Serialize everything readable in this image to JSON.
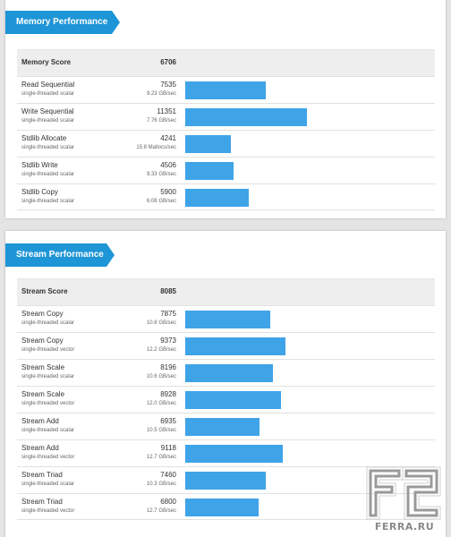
{
  "chart_data": [
    {
      "type": "bar",
      "title": "Memory Performance",
      "header": {
        "label": "Memory Score",
        "value": 6706
      },
      "bar_max": 15000,
      "rows": [
        {
          "name": "Read Sequential",
          "sub": "single-threaded scalar",
          "value": 7535,
          "rate": "9.23 GB/sec"
        },
        {
          "name": "Write Sequential",
          "sub": "single-threaded scalar",
          "value": 11351,
          "rate": "7.76 GB/sec"
        },
        {
          "name": "Stdlib Allocate",
          "sub": "single-threaded scalar",
          "value": 4241,
          "rate": "15.8 Mallocs/sec"
        },
        {
          "name": "Stdlib Write",
          "sub": "single-threaded scalar",
          "value": 4506,
          "rate": "9.33 GB/sec"
        },
        {
          "name": "Stdlib Copy",
          "sub": "single-threaded scalar",
          "value": 5900,
          "rate": "6.08 GB/sec"
        }
      ]
    },
    {
      "type": "bar",
      "title": "Stream Performance",
      "header": {
        "label": "Stream Score",
        "value": 8085
      },
      "bar_max": 15000,
      "rows": [
        {
          "name": "Stream Copy",
          "sub": "single-threaded scalar",
          "value": 7875,
          "rate": "10.8 GB/sec"
        },
        {
          "name": "Stream Copy",
          "sub": "single-threaded vector",
          "value": 9373,
          "rate": "12.2 GB/sec"
        },
        {
          "name": "Stream Scale",
          "sub": "single-threaded scalar",
          "value": 8196,
          "rate": "10.6 GB/sec"
        },
        {
          "name": "Stream Scale",
          "sub": "single-threaded vector",
          "value": 8928,
          "rate": "12.0 GB/sec"
        },
        {
          "name": "Stream Add",
          "sub": "single-threaded scalar",
          "value": 6935,
          "rate": "10.5 GB/sec"
        },
        {
          "name": "Stream Add",
          "sub": "single-threaded vector",
          "value": 9118,
          "rate": "12.7 GB/sec"
        },
        {
          "name": "Stream Triad",
          "sub": "single-threaded scalar",
          "value": 7460,
          "rate": "10.3 GB/sec"
        },
        {
          "name": "Stream Triad",
          "sub": "single-threaded vector",
          "value": 6800,
          "rate": "12.7 GB/sec"
        }
      ]
    }
  ],
  "colors": {
    "ribbon": "#1e95d6",
    "bar": "#3fa3e8",
    "header_row": "#eeeeee"
  },
  "watermark": {
    "text": "FERRA.RU"
  }
}
